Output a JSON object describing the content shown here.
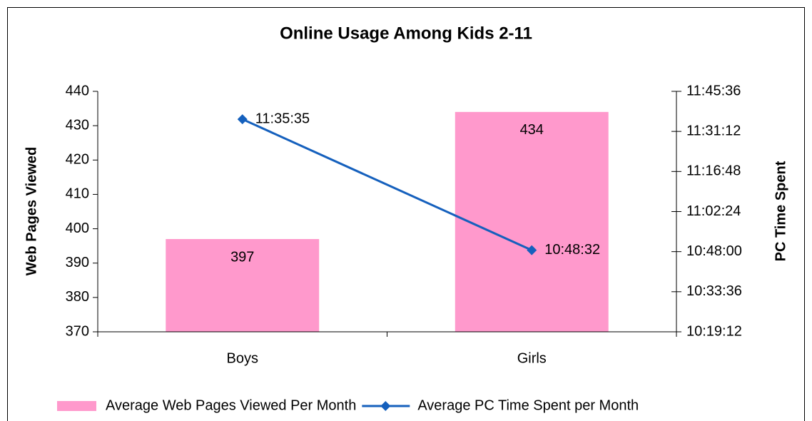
{
  "chart_data": {
    "type": "bar",
    "title": "Online Usage Among Kids 2-11",
    "ylabel": "Web Pages Viewed",
    "y2label": "PC Time Spent",
    "categories": [
      "Boys",
      "Girls"
    ],
    "series": [
      {
        "name": "Average Web Pages Viewed Per Month",
        "type": "bar",
        "color": "#ff99cc",
        "values": [
          397,
          434
        ]
      },
      {
        "name": "Average PC Time Spent per Month",
        "type": "line",
        "axis": "y2",
        "color": "#1560bd",
        "values": [
          41735,
          38912
        ],
        "value_labels": [
          "11:35:35",
          "10:48:32"
        ]
      }
    ],
    "ylim": [
      370,
      440
    ],
    "yticks": [
      370,
      380,
      390,
      400,
      410,
      420,
      430,
      440
    ],
    "y2lim": [
      37152,
      42336
    ],
    "y2ticks": [
      {
        "value": 37152,
        "label": "10:19:12"
      },
      {
        "value": 38016,
        "label": "10:33:36"
      },
      {
        "value": 38880,
        "label": "10:48:00"
      },
      {
        "value": 39744,
        "label": "11:02:24"
      },
      {
        "value": 40608,
        "label": "11:16:48"
      },
      {
        "value": 41472,
        "label": "11:31:12"
      },
      {
        "value": 42336,
        "label": "11:45:36"
      }
    ],
    "legend": "bottom"
  }
}
